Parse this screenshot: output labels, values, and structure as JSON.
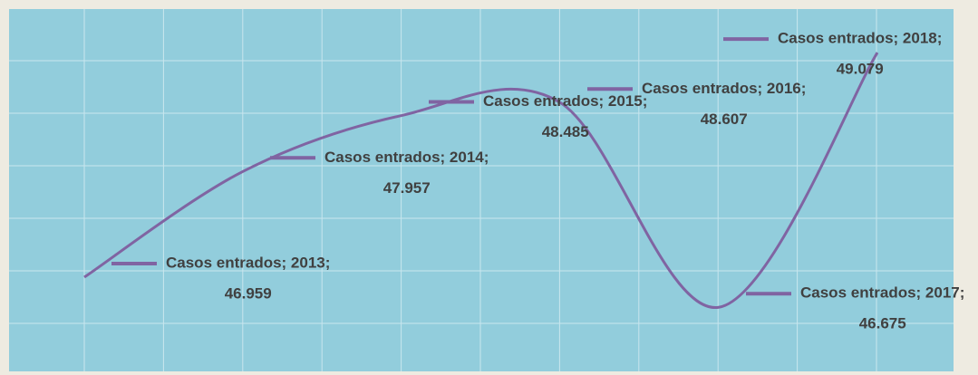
{
  "chart_data": {
    "type": "line",
    "smooth": true,
    "categories": [
      "2013",
      "2014",
      "2015",
      "2016",
      "2017",
      "2018"
    ],
    "series": [
      {
        "name": "Casos entrados",
        "color": "#8064a2",
        "values": [
          46959,
          47957,
          48485,
          48607,
          46675,
          49079
        ],
        "value_labels": [
          "46.959",
          "47.957",
          "48.485",
          "48.607",
          "46.675",
          "49.079"
        ],
        "point_labels": [
          "Casos entrados; 2013;",
          "Casos entrados; 2014;",
          "Casos entrados; 2015;",
          "Casos entrados; 2016;",
          "Casos entrados; 2017;",
          "Casos entrados; 2018;"
        ]
      }
    ],
    "ylim": [
      46070,
      49490
    ],
    "grid": true
  }
}
